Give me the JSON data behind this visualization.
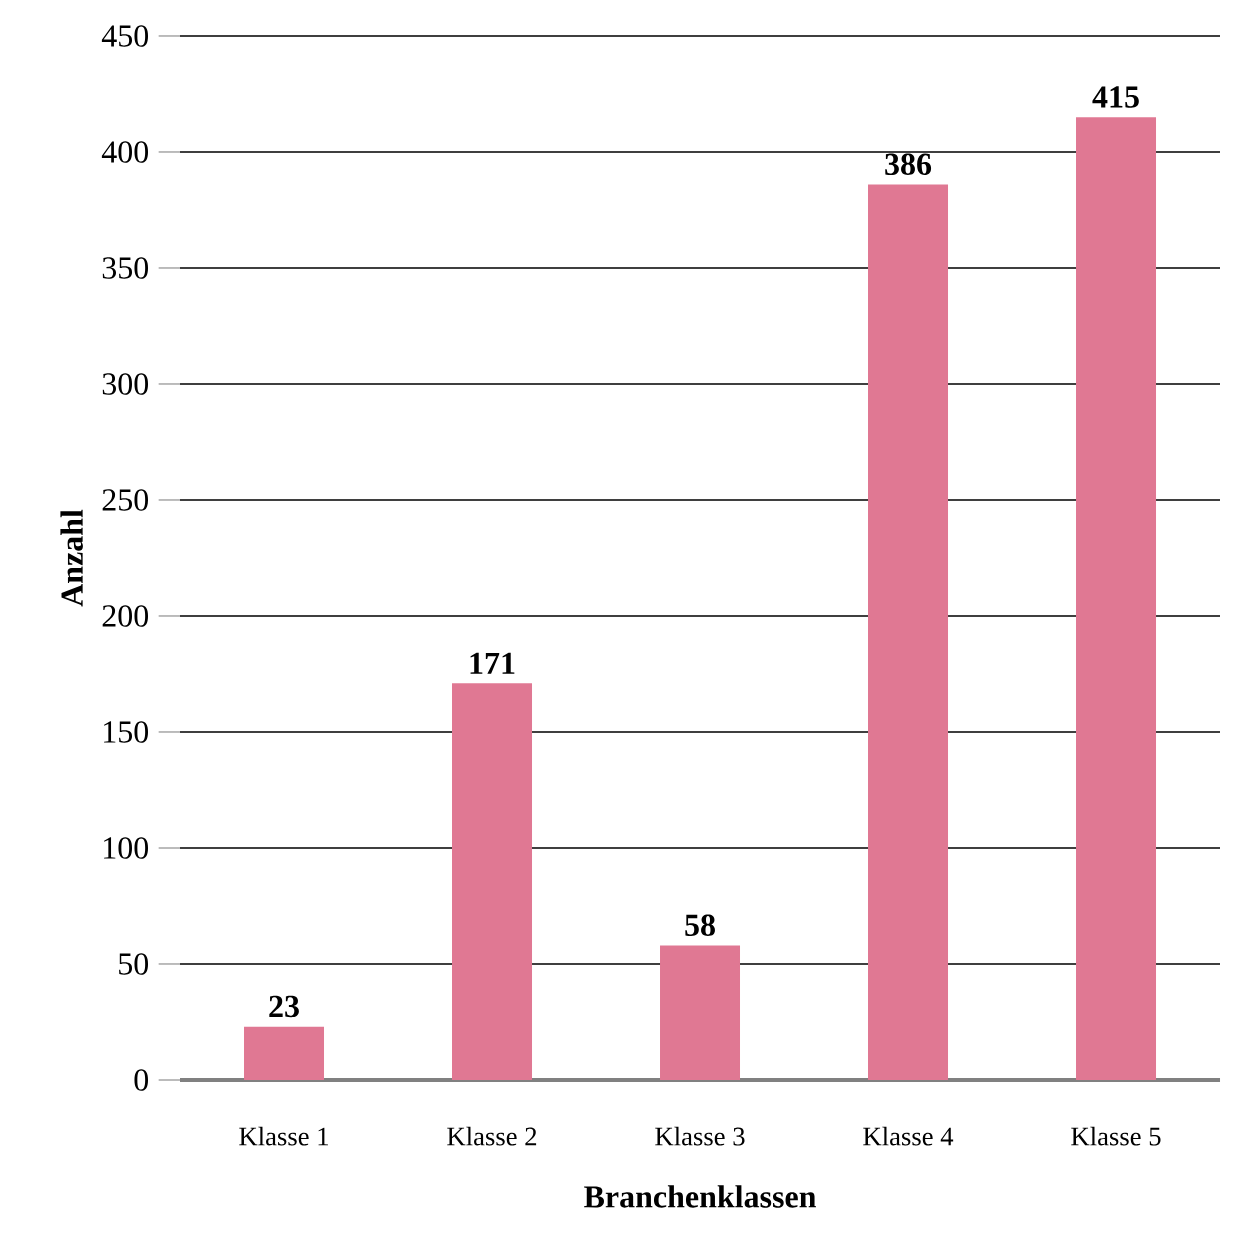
{
  "chart_data": {
    "type": "bar",
    "xlabel": "Branchenklassen",
    "ylabel": "Anzahl",
    "categories": [
      "Klasse 1",
      "Klasse 2",
      "Klasse 3",
      "Klasse 4",
      "Klasse 5"
    ],
    "values": [
      23,
      171,
      58,
      386,
      415
    ],
    "color": "#e07893",
    "data_labels": true,
    "ylim": [
      0,
      450
    ],
    "yticks": [
      0,
      50,
      100,
      150,
      200,
      250,
      300,
      350,
      400,
      450
    ],
    "grid": "y"
  }
}
